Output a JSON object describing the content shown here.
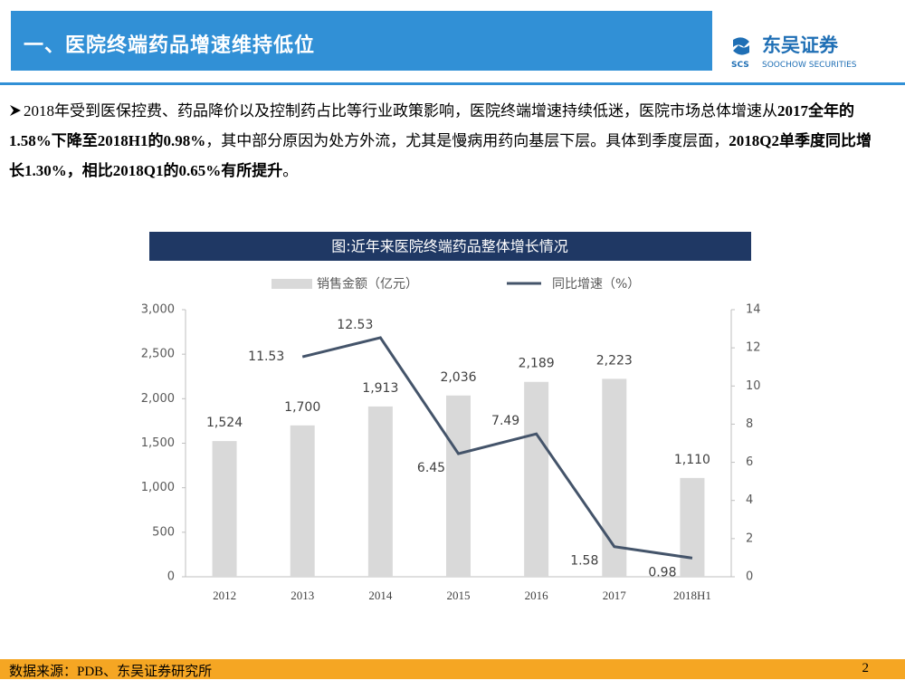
{
  "header": {
    "title": "一、医院终端药品增速维持低位",
    "logo_cn": "东吴证券",
    "logo_en": "SOOCHOW SECURITIES",
    "logo_mark": "SCS"
  },
  "paragraph": [
    {
      "text": "2018年受到医保控费、药品降价以及控制药占比等行业政策影响，医院终端增速持续低迷，医院市场总体增速从",
      "bold": false
    },
    {
      "text": "2017全年的1.58%下降至2018H1的0.98%",
      "bold": true
    },
    {
      "text": "，其中部分原因为处方外流，尤其是慢病用药向基层下层。具体到季度层面，",
      "bold": false
    },
    {
      "text": "2018Q2单季度同比增长1.30%，相比2018Q1的0.65%有所提升",
      "bold": true
    },
    {
      "text": "。",
      "bold": false
    }
  ],
  "chart_data": {
    "type": "bar",
    "title": "图:近年来医院终端药品整体增长情况",
    "categories": [
      "2012",
      "2013",
      "2014",
      "2015",
      "2016",
      "2017",
      "2018H1"
    ],
    "series": [
      {
        "name": "销售金额（亿元）",
        "type": "bar",
        "color": "#d9d9d9",
        "values": [
          1524,
          1700,
          1913,
          2036,
          2189,
          2223,
          1110
        ],
        "value_labels": [
          "1,524",
          "1,700",
          "1,913",
          "2,036",
          "2,189",
          "2,223",
          "1,110"
        ]
      },
      {
        "name": "同比增速（%）",
        "type": "line",
        "axis": "y2",
        "color": "#44546a",
        "values": [
          null,
          11.53,
          12.53,
          6.45,
          7.49,
          1.58,
          0.98
        ]
      }
    ],
    "ylim": [
      0,
      3000
    ],
    "yticks": [
      0,
      500,
      {
        "value": 1000,
        "label": "1,000"
      },
      {
        "value": 1500,
        "label": "1,500"
      },
      {
        "value": 2000,
        "label": "2,000"
      },
      {
        "value": 2500,
        "label": "2,500"
      },
      {
        "value": 3000,
        "label": "3,000"
      }
    ],
    "y2lim": [
      0,
      14
    ],
    "y2ticks": [
      0,
      2,
      4,
      6,
      8,
      10,
      12,
      14
    ],
    "grid": false
  },
  "footer": {
    "source": "数据来源：PDB、东吴证券研究所",
    "page": "2"
  }
}
